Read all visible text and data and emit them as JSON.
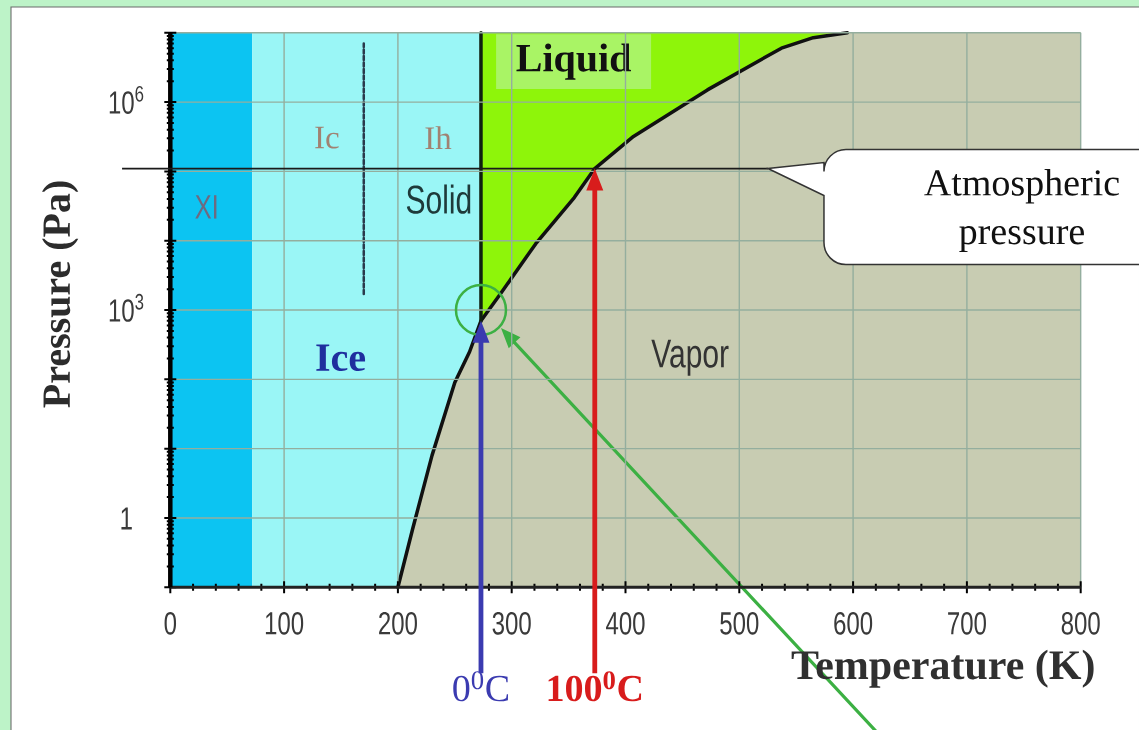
{
  "chart_data": {
    "type": "line",
    "xlabel": "Temperature (K)",
    "ylabel": "Pressure (Pa)",
    "xlim": [
      0,
      800
    ],
    "ylim": [
      0.1,
      10000000
    ],
    "xticks": [
      0,
      100,
      200,
      300,
      400,
      500,
      600,
      700,
      800
    ],
    "yticks": [
      {
        "value": 0.1,
        "label": null
      },
      {
        "value": 1,
        "label": "1"
      },
      {
        "value": 10,
        "label": null
      },
      {
        "value": 100,
        "label": null
      },
      {
        "value": 1000,
        "label": "10$^{3}$"
      },
      {
        "value": 10000,
        "label": null
      },
      {
        "value": 100000,
        "label": null
      },
      {
        "value": 1000000,
        "label": "10$^{6}$"
      },
      {
        "value": 10000000,
        "label": null
      }
    ],
    "log": "y",
    "grid": true,
    "bands": [
      {
        "axis": "x",
        "from": 0,
        "to": 72,
        "color": "#0cc4f2"
      },
      {
        "axis": "x",
        "from": 72,
        "to": 273,
        "color": "#9af6f6"
      },
      {
        "axis": "x",
        "from": 273,
        "to": 800,
        "color": "#8ef50a"
      }
    ],
    "series": [
      {
        "type": "area",
        "x": [
          200,
          213,
          230,
          250,
          263,
          273,
          290,
          321,
          355,
          373,
          407,
          472,
          537,
          565,
          595,
          800
        ],
        "values": [
          0.1,
          0.7,
          8,
          90,
          250,
          700,
          1700,
          9000,
          42000,
          110000,
          320000,
          1500000,
          6000000,
          8500000,
          10000000,
          10000000
        ],
        "color": "#c8ccb2"
      },
      {
        "type": "line",
        "x": [
          273,
          273
        ],
        "values": [
          700,
          10000000
        ],
        "color": "#102010"
      },
      {
        "type": "line",
        "x": [
          170,
          170
        ],
        "values": [
          1700,
          7000000
        ],
        "color": "#2a3a4c",
        "line_style": "dotted"
      },
      {
        "type": "scatter",
        "x": [
          273
        ],
        "values": [
          1000
        ],
        "color": "#3cb043",
        "marker": "circle"
      }
    ],
    "ref_lines": [
      {
        "axis": "y",
        "value": 110000,
        "label": "Atmospheric pressure",
        "color": "#1a1a1a"
      }
    ],
    "annotations": [
      "XI",
      "Ic",
      "Ih",
      "Solid",
      "Ice",
      "Liquid",
      "Vapor",
      "0$^{0}$C",
      "100$^{0}$C"
    ]
  }
}
